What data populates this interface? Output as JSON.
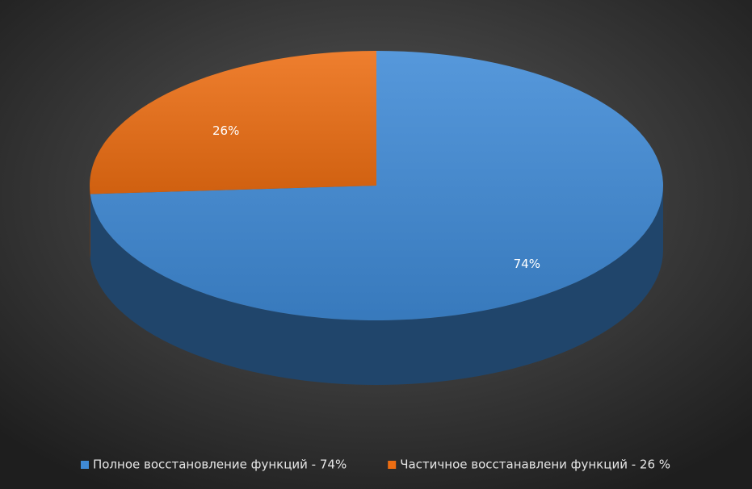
{
  "chart_data": {
    "type": "pie",
    "categories": [
      "Полное восстановление функций - 74%",
      "Частичное восстанавлени функций - 26 %"
    ],
    "values": [
      74,
      26
    ],
    "value_labels": [
      "74%",
      "26%"
    ],
    "colors": [
      "#3f8ad6",
      "#ec6d12"
    ],
    "start_angle": 0,
    "legend": "bottom"
  }
}
